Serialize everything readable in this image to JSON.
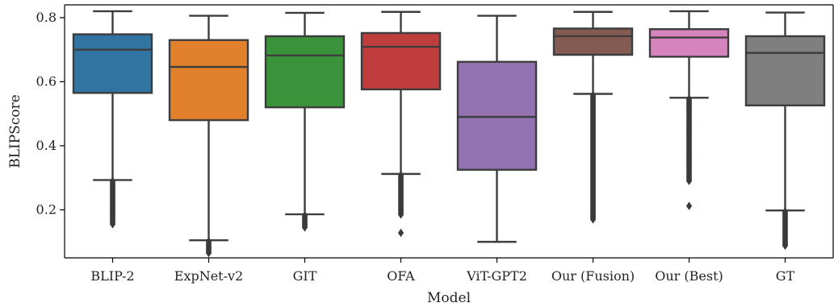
{
  "chart_data": {
    "type": "box",
    "title": "",
    "xlabel": "Model",
    "ylabel": "BLIPScore",
    "ylim": [
      0.05,
      0.84
    ],
    "yticks": [
      0.2,
      0.4,
      0.6,
      0.8
    ],
    "ytick_labels": [
      "0.2",
      "0.4",
      "0.6",
      "0.8"
    ],
    "grid": false,
    "categories": [
      "BLIP-2",
      "ExpNet-v2",
      "GIT",
      "OFA",
      "ViT-GPT2",
      "Our (Fusion)",
      "Our (Best)",
      "GT"
    ],
    "series": [
      {
        "category": "BLIP-2",
        "color": "#3274a1",
        "whisker_low": 0.293,
        "q1": 0.565,
        "median": 0.7,
        "q3": 0.748,
        "whisker_high": 0.82,
        "outliers_range": [
          0.155,
          0.29
        ],
        "outlier_density": "dense"
      },
      {
        "category": "ExpNet-v2",
        "color": "#e1812c",
        "whisker_low": 0.105,
        "q1": 0.48,
        "median": 0.646,
        "q3": 0.73,
        "whisker_high": 0.806,
        "outliers_range": [
          0.065,
          0.102
        ],
        "outlier_density": "dense"
      },
      {
        "category": "GIT",
        "color": "#3a923a",
        "whisker_low": 0.186,
        "q1": 0.52,
        "median": 0.682,
        "q3": 0.742,
        "whisker_high": 0.815,
        "outliers_range": [
          0.145,
          0.183
        ],
        "outlier_density": "dense"
      },
      {
        "category": "OFA",
        "color": "#c03d3e",
        "whisker_low": 0.312,
        "q1": 0.576,
        "median": 0.709,
        "q3": 0.752,
        "whisker_high": 0.818,
        "outliers_range": [
          0.185,
          0.309
        ],
        "outlier_density": "dense",
        "extra_outliers": [
          0.128
        ]
      },
      {
        "category": "ViT-GPT2",
        "color": "#9372b2",
        "whisker_low": 0.1,
        "q1": 0.325,
        "median": 0.49,
        "q3": 0.662,
        "whisker_high": 0.806,
        "outliers_range": null,
        "outlier_density": "none"
      },
      {
        "category": "Our (Fusion)",
        "color": "#845b53",
        "whisker_low": 0.562,
        "q1": 0.684,
        "median": 0.742,
        "q3": 0.766,
        "whisker_high": 0.818,
        "outliers_range": [
          0.17,
          0.558
        ],
        "outlier_density": "dense"
      },
      {
        "category": "Our (Best)",
        "color": "#d684bd",
        "whisker_low": 0.55,
        "q1": 0.678,
        "median": 0.738,
        "q3": 0.764,
        "whisker_high": 0.82,
        "outliers_range": [
          0.29,
          0.547
        ],
        "outlier_density": "dense",
        "extra_outliers": [
          0.212
        ]
      },
      {
        "category": "GT",
        "color": "#7f7f7f",
        "whisker_low": 0.198,
        "q1": 0.526,
        "median": 0.69,
        "q3": 0.742,
        "whisker_high": 0.816,
        "outliers_range": [
          0.088,
          0.195
        ],
        "outlier_density": "dense"
      }
    ]
  }
}
